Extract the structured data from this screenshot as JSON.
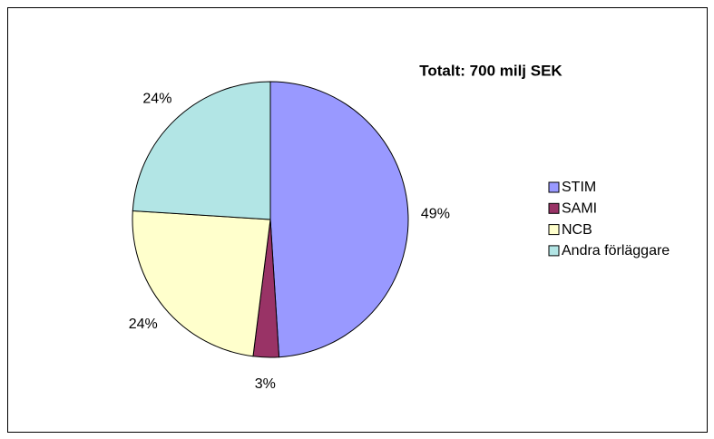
{
  "chart_data": {
    "type": "pie",
    "title": "Totalt: 700 milj SEK",
    "categories": [
      "STIM",
      "SAMI",
      "NCB",
      "Andra förläggare"
    ],
    "values": [
      49,
      3,
      24,
      24
    ],
    "value_labels": [
      "49%",
      "3%",
      "24%",
      "24%"
    ],
    "colors": [
      "#9999ff",
      "#993366",
      "#ffffcc",
      "#b2e5e5"
    ],
    "legend": "right"
  }
}
